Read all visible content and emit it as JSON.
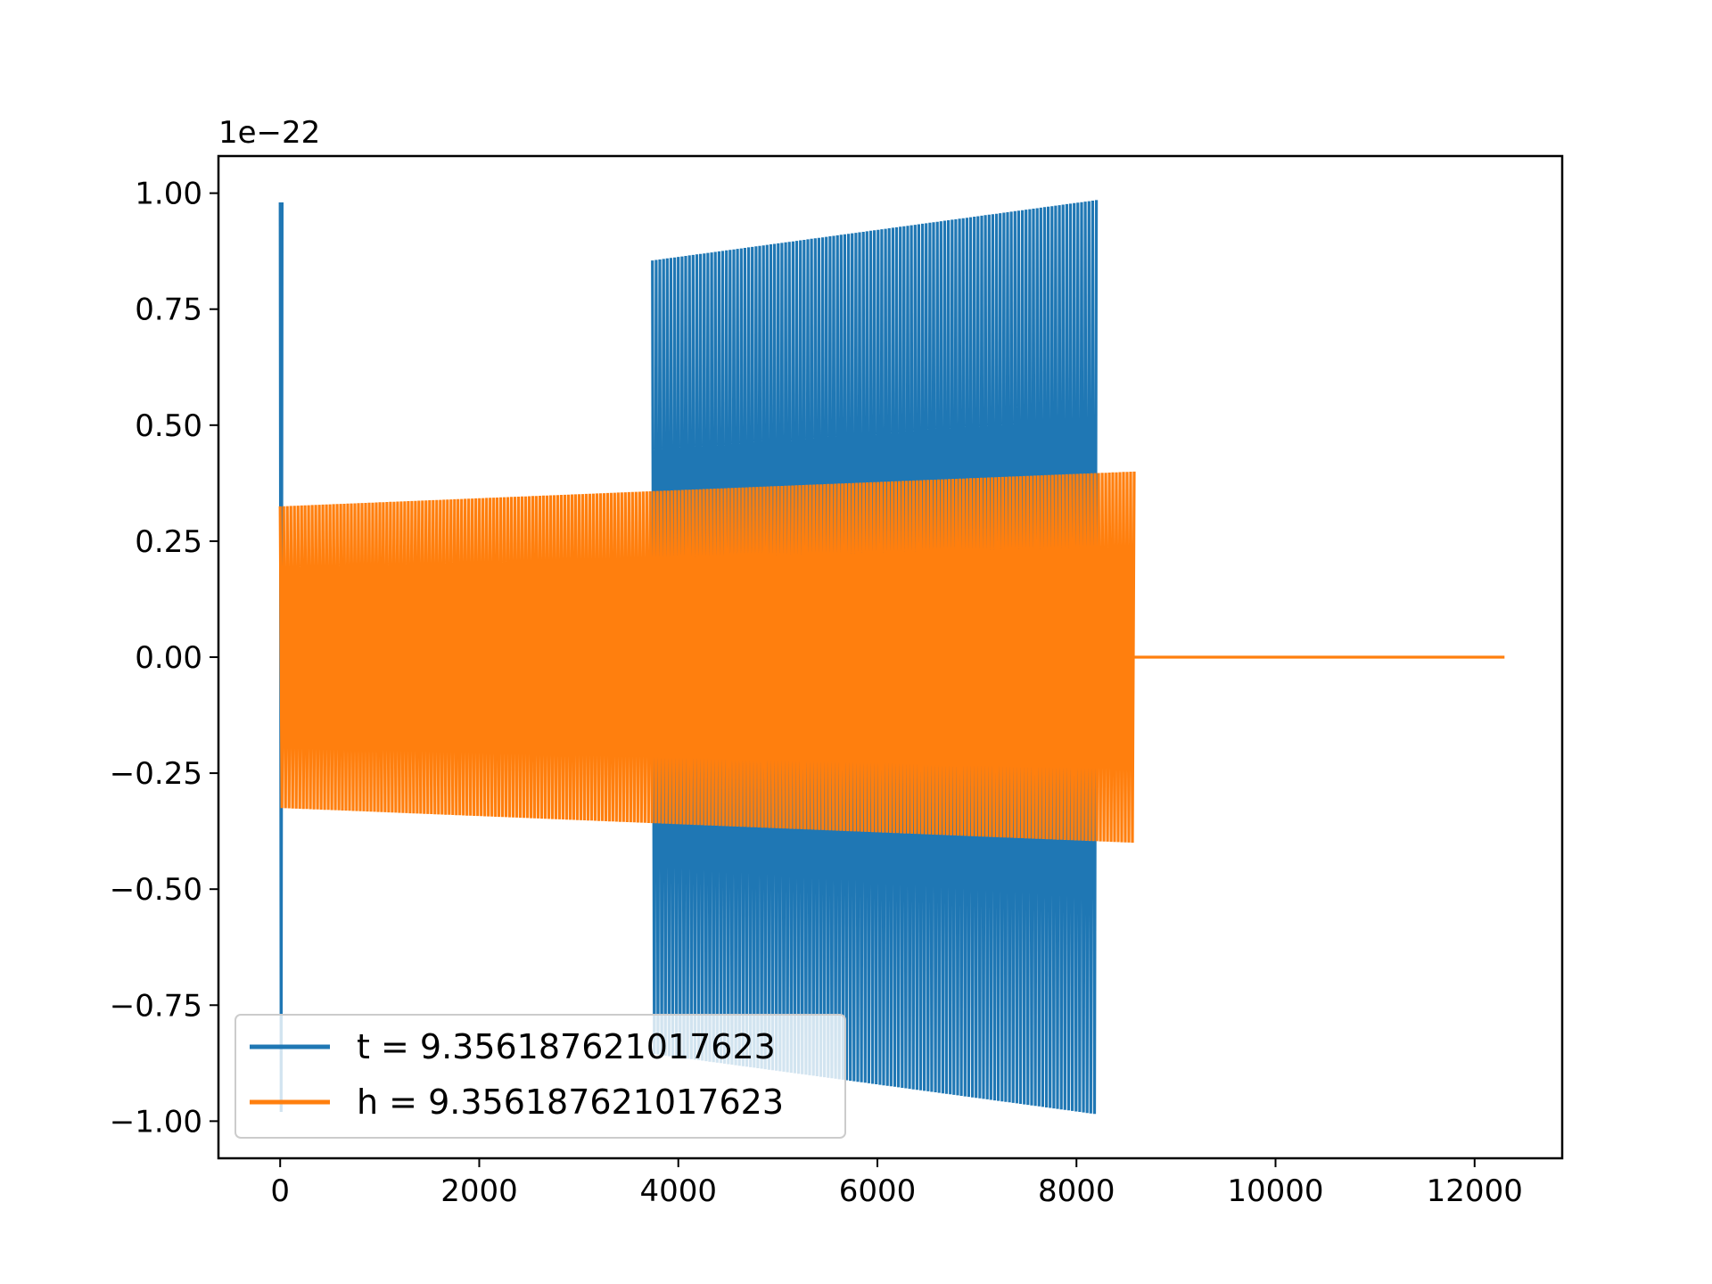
{
  "chart_data": {
    "type": "line",
    "title": "",
    "xlabel": "",
    "ylabel": "",
    "y_offset_label": "1e−22",
    "xlim": [
      -620,
      12880
    ],
    "ylim": [
      -1.08,
      1.08
    ],
    "x_ticks": [
      0,
      2000,
      4000,
      6000,
      8000,
      10000,
      12000
    ],
    "x_tick_labels": [
      "0",
      "2000",
      "4000",
      "6000",
      "8000",
      "10000",
      "12000"
    ],
    "y_ticks": [
      1.0,
      0.75,
      0.5,
      0.25,
      0.0,
      -0.25,
      -0.5,
      -0.75,
      -1.0
    ],
    "y_tick_labels": [
      "1.00",
      "0.75",
      "0.50",
      "0.25",
      "0.00",
      "−0.25",
      "−0.50",
      "−0.75",
      "−1.00"
    ],
    "grid": false,
    "legend_position": "lower-left",
    "series": [
      {
        "name": "t = 9.356187621017623",
        "color": "#1f77b4",
        "segments": [
          {
            "x_start": 0,
            "x_end": 20,
            "amp_start": 0.98,
            "amp_end": 0.98,
            "cycles": 1
          },
          {
            "x_start": 3740,
            "x_end": 8200,
            "amp_start": 0.855,
            "amp_end": 0.985,
            "cycles": 120
          }
        ]
      },
      {
        "name": "h = 9.356187621017623",
        "color": "#ff7f0e",
        "segments": [
          {
            "x_start": 0,
            "x_end": 8580,
            "amp_start": 0.325,
            "amp_end": 0.4,
            "cycles": 240
          },
          {
            "x_start": 8580,
            "x_end": 12300,
            "amp_start": 0.0,
            "amp_end": 0.0,
            "cycles": 0
          }
        ]
      }
    ]
  }
}
